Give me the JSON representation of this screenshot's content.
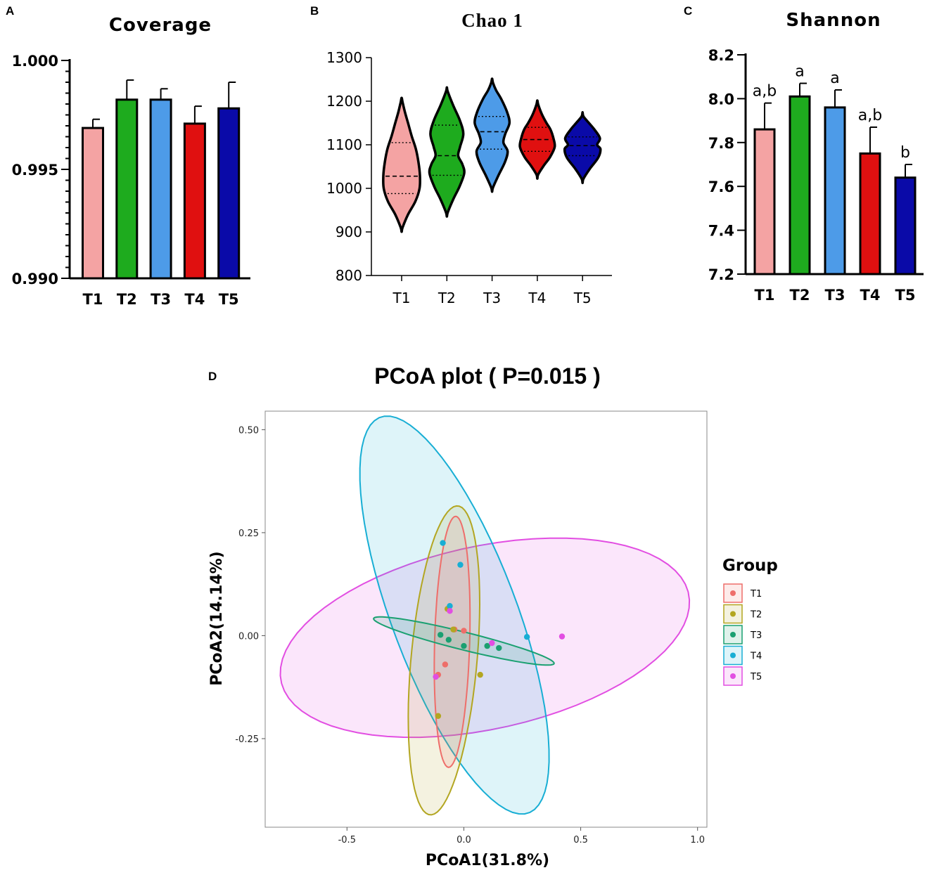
{
  "chart_data": [
    {
      "panel": "A",
      "type": "bar",
      "title": "Coverage",
      "categories": [
        "T1",
        "T2",
        "T3",
        "T4",
        "T5"
      ],
      "values": [
        0.9969,
        0.9982,
        0.9982,
        0.9971,
        0.9978
      ],
      "errors": [
        0.0004,
        0.0009,
        0.0005,
        0.0008,
        0.0012
      ],
      "colors": [
        "#f4a3a3",
        "#1eab1e",
        "#4d9be8",
        "#e01010",
        "#0a0aa8"
      ],
      "ylim": [
        0.99,
        1.0
      ],
      "yticks": [
        "0.990",
        "0.995",
        "1.000"
      ],
      "ytick_values": [
        0.99,
        0.995,
        1.0
      ],
      "minor_tick_step": 0.0005
    },
    {
      "panel": "B",
      "type": "violin",
      "title": "Chao 1",
      "categories": [
        "T1",
        "T2",
        "T3",
        "T4",
        "T5"
      ],
      "colors": [
        "#f4a3a3",
        "#1eab1e",
        "#4d9be8",
        "#e01010",
        "#0a0aa8"
      ],
      "ylim": [
        800,
        1300
      ],
      "yticks": [
        "800",
        "900",
        "1000",
        "1100",
        "1200",
        "1300"
      ],
      "ytick_values": [
        800,
        900,
        1000,
        1100,
        1200,
        1300
      ],
      "medians": [
        1028,
        1075,
        1130,
        1112,
        1098
      ],
      "quartiles": [
        [
          988,
          1105
        ],
        [
          1030,
          1145
        ],
        [
          1090,
          1165
        ],
        [
          1085,
          1140
        ],
        [
          1075,
          1118
        ]
      ],
      "min": [
        910,
        945,
        1002,
        1032,
        1022
      ],
      "max": [
        1198,
        1222,
        1242,
        1192,
        1165
      ],
      "profiles": [
        [
          [
            910,
            0.05
          ],
          [
            940,
            0.35
          ],
          [
            970,
            0.75
          ],
          [
            1000,
            0.98
          ],
          [
            1030,
            1.0
          ],
          [
            1060,
            0.92
          ],
          [
            1090,
            0.78
          ],
          [
            1120,
            0.55
          ],
          [
            1150,
            0.35
          ],
          [
            1175,
            0.18
          ],
          [
            1198,
            0.05
          ]
        ],
        [
          [
            945,
            0.05
          ],
          [
            975,
            0.35
          ],
          [
            1005,
            0.7
          ],
          [
            1035,
            0.95
          ],
          [
            1055,
            0.85
          ],
          [
            1075,
            0.62
          ],
          [
            1095,
            0.72
          ],
          [
            1125,
            0.9
          ],
          [
            1155,
            0.72
          ],
          [
            1190,
            0.35
          ],
          [
            1222,
            0.05
          ]
        ],
        [
          [
            1002,
            0.05
          ],
          [
            1030,
            0.35
          ],
          [
            1060,
            0.7
          ],
          [
            1085,
            0.85
          ],
          [
            1105,
            0.62
          ],
          [
            1125,
            0.72
          ],
          [
            1150,
            0.95
          ],
          [
            1175,
            0.82
          ],
          [
            1205,
            0.5
          ],
          [
            1225,
            0.22
          ],
          [
            1242,
            0.05
          ]
        ],
        [
          [
            1032,
            0.05
          ],
          [
            1052,
            0.35
          ],
          [
            1072,
            0.7
          ],
          [
            1095,
            0.95
          ],
          [
            1115,
            0.88
          ],
          [
            1135,
            0.72
          ],
          [
            1150,
            0.5
          ],
          [
            1170,
            0.25
          ],
          [
            1192,
            0.05
          ]
        ],
        [
          [
            1022,
            0.05
          ],
          [
            1045,
            0.4
          ],
          [
            1070,
            0.85
          ],
          [
            1090,
            0.98
          ],
          [
            1100,
            0.8
          ],
          [
            1115,
            0.95
          ],
          [
            1135,
            0.65
          ],
          [
            1150,
            0.35
          ],
          [
            1165,
            0.05
          ]
        ]
      ]
    },
    {
      "panel": "C",
      "type": "bar",
      "title": "Shannon",
      "categories": [
        "T1",
        "T2",
        "T3",
        "T4",
        "T5"
      ],
      "values": [
        7.86,
        8.01,
        7.96,
        7.75,
        7.64
      ],
      "errors": [
        0.12,
        0.06,
        0.08,
        0.12,
        0.06
      ],
      "annotations": [
        "a,b",
        "a",
        "a",
        "a,b",
        "b"
      ],
      "colors": [
        "#f4a3a3",
        "#1eab1e",
        "#4d9be8",
        "#e01010",
        "#0a0aa8"
      ],
      "ylim": [
        7.2,
        8.2
      ],
      "yticks": [
        "7.2",
        "7.4",
        "7.6",
        "7.8",
        "8.0",
        "8.2"
      ],
      "ytick_values": [
        7.2,
        7.4,
        7.6,
        7.8,
        8.0,
        8.2
      ]
    },
    {
      "panel": "D",
      "type": "scatter",
      "title": "PCoA plot ( P=0.015 )",
      "xlabel": "PCoA1(31.8%)",
      "ylabel": "PCoA2(14.14%)",
      "xlim": [
        -0.85,
        1.04
      ],
      "ylim": [
        -0.465,
        0.545
      ],
      "xticks": [
        "-0.5",
        "0.0",
        "0.5",
        "1.0"
      ],
      "xtick_values": [
        -0.5,
        0.0,
        0.5,
        1.0
      ],
      "yticks": [
        "-0.25",
        "0.00",
        "0.25",
        "0.50"
      ],
      "ytick_values": [
        -0.25,
        0.0,
        0.25,
        0.5
      ],
      "legend_title": "Group",
      "legend_position": "right",
      "groups": [
        {
          "name": "T1",
          "color": "#ee6e6a",
          "points": [
            [
              -0.04,
              0.015
            ],
            [
              -0.08,
              -0.07
            ],
            [
              -0.11,
              -0.095
            ],
            [
              0.0,
              0.012
            ]
          ],
          "ellipse": {
            "cx": -0.05,
            "cy": -0.015,
            "rx": 0.305,
            "ry": 0.075,
            "angle_deg": 87
          }
        },
        {
          "name": "T2",
          "color": "#b3a621",
          "points": [
            [
              -0.07,
              0.065
            ],
            [
              -0.11,
              -0.195
            ],
            [
              0.07,
              -0.095
            ],
            [
              -0.045,
              0.015
            ]
          ],
          "ellipse": {
            "cx": -0.085,
            "cy": -0.06,
            "rx": 0.38,
            "ry": 0.14,
            "angle_deg": 80
          }
        },
        {
          "name": "T3",
          "color": "#1aa071",
          "points": [
            [
              -0.1,
              0.002
            ],
            [
              -0.065,
              -0.01
            ],
            [
              0.0,
              -0.025
            ],
            [
              0.1,
              -0.025
            ],
            [
              0.15,
              -0.03
            ]
          ],
          "ellipse": {
            "cx": 0.0,
            "cy": -0.013,
            "rx": 0.39,
            "ry": 0.022,
            "angle_deg": -8
          }
        },
        {
          "name": "T4",
          "color": "#18aed4",
          "points": [
            [
              -0.09,
              0.225
            ],
            [
              -0.015,
              0.172
            ],
            [
              -0.06,
              0.072
            ],
            [
              0.27,
              -0.003
            ]
          ],
          "ellipse": {
            "cx": -0.04,
            "cy": 0.05,
            "rx": 0.585,
            "ry": 0.235,
            "angle_deg": -52
          }
        },
        {
          "name": "T5",
          "color": "#e24ee2",
          "points": [
            [
              -0.06,
              0.06
            ],
            [
              0.12,
              -0.018
            ],
            [
              0.42,
              -0.002
            ],
            [
              -0.12,
              -0.1
            ]
          ],
          "ellipse": {
            "cx": 0.09,
            "cy": -0.005,
            "rx": 0.88,
            "ry": 0.225,
            "angle_deg": 6
          }
        }
      ]
    }
  ],
  "panel_letters": [
    "A",
    "B",
    "C",
    "D"
  ]
}
